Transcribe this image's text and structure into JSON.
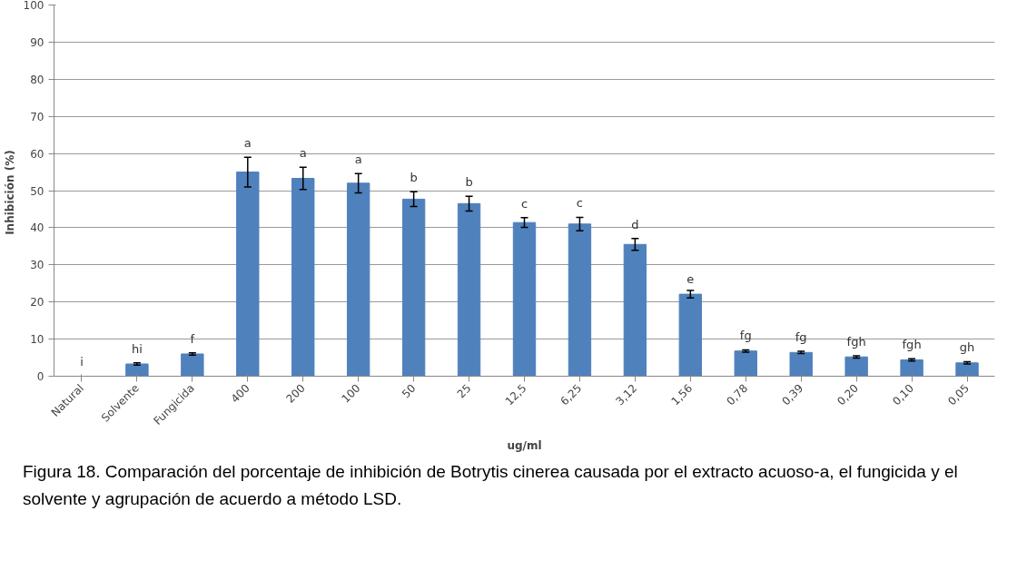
{
  "chart_data": {
    "type": "bar",
    "xlabel": "ug/ml",
    "ylabel": "Inhibición  (%)",
    "categories": [
      "Natural",
      "Solvente",
      "Fungicida",
      "400",
      "200",
      "100",
      "50",
      "25",
      "12,5",
      "6,25",
      "3,12",
      "1,56",
      "0,78",
      "0,39",
      "0,20",
      "0,10",
      "0,05"
    ],
    "values": [
      0,
      3.3,
      6.0,
      55,
      53.3,
      52,
      47.7,
      46.5,
      41.4,
      41,
      35.5,
      22.1,
      6.8,
      6.4,
      5.2,
      4.4,
      3.6
    ],
    "errors": [
      null,
      0.3,
      0.3,
      4,
      3,
      2.6,
      2,
      2,
      1.3,
      1.8,
      1.6,
      1,
      0.3,
      0.3,
      0.3,
      0.3,
      0.3
    ],
    "value_labels": [
      "i",
      "hi",
      "f",
      "a",
      "a",
      "a",
      "b",
      "b",
      "c",
      "c",
      "d",
      "e",
      "fg",
      "fg",
      "fgh",
      "fgh",
      "gh"
    ],
    "color": "#4f81bd",
    "ylim": [
      0,
      100
    ],
    "yticks": [
      0,
      10,
      20,
      30,
      40,
      50,
      60,
      70,
      80,
      90,
      100
    ],
    "grid": "y",
    "annotations": [
      "Figura 18. Comparación del porcentaje de inhibición de Botrytis cinerea causada por el extracto acuoso-a, el fungicida y el solvente y agrupación de acuerdo a método LSD."
    ]
  }
}
